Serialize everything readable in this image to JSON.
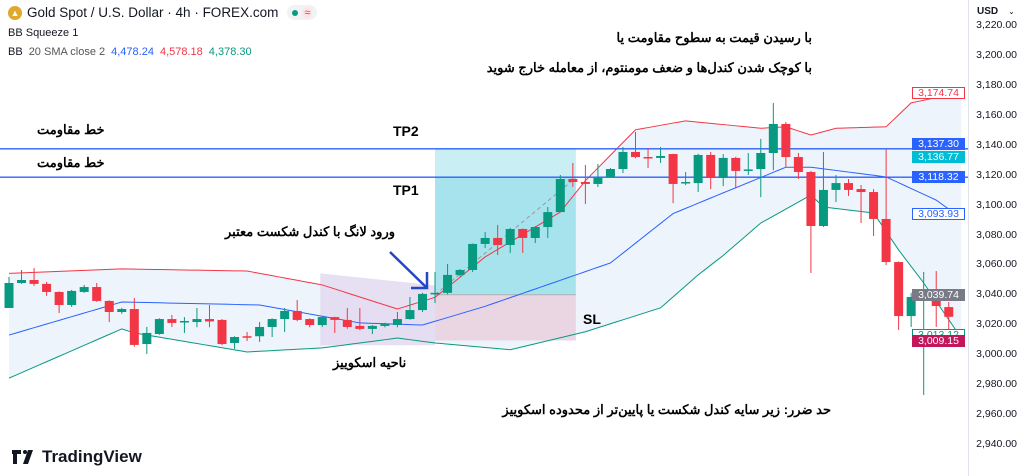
{
  "header": {
    "symbol_title": "Gold Spot / U.S. Dollar · 4h · FOREX.com",
    "wave_icon": "≈",
    "indicator1": "BB Squeeze 1",
    "bb_label": "BB",
    "bb_params": "20 SMA close 2",
    "bb_basis": "4,478.24",
    "bb_upper": "4,578.18",
    "bb_lower": "4,378.30"
  },
  "axis": {
    "currency": "USD",
    "ticks": [
      "3,220.00",
      "3,200.00",
      "3,180.00",
      "3,160.00",
      "3,140.00",
      "3,120.00",
      "3,100.00",
      "3,080.00",
      "3,060.00",
      "3,040.00",
      "3,020.00",
      "3,000.00",
      "2,980.00",
      "2,960.00",
      "2,940.00"
    ],
    "tick_values": [
      3220,
      3200,
      3180,
      3160,
      3140,
      3120,
      3100,
      3080,
      3060,
      3040,
      3020,
      3000,
      2980,
      2960,
      2940
    ],
    "labels": [
      {
        "text": "3,174.74",
        "value": 3174.74,
        "style": "outline",
        "color": "#f23645"
      },
      {
        "text": "3,137.30",
        "value": 3140.3,
        "style": "fill",
        "color": "#2962ff"
      },
      {
        "text": "3,136.77",
        "value": 3131.5,
        "style": "fill",
        "color": "#00bcd4"
      },
      {
        "text": "3,118.32",
        "value": 3118.32,
        "style": "fill",
        "color": "#2962ff"
      },
      {
        "text": "3,093.93",
        "value": 3093.93,
        "style": "outline",
        "color": "#2962ff"
      },
      {
        "text": "3,039.74",
        "value": 3039.74,
        "style": "fill",
        "color": "#787b86"
      },
      {
        "text": "3,013.12",
        "value": 3013.12,
        "style": "outline",
        "color": "#089981"
      },
      {
        "text": "3,009.15",
        "value": 3009.15,
        "style": "fill",
        "color": "#c2185b"
      }
    ]
  },
  "annotations": {
    "exit_line1": "با رسیدن قیمت به سطوح مقاومت یا",
    "exit_line2": "با کوچک شدن کندل‌ها و ضعف مومنتوم، از معامله خارج شوید",
    "resistance1": "خط مقاومت",
    "resistance2": "خط مقاومت",
    "tp2": "TP2",
    "tp1": "TP1",
    "entry": "ورود لانگ با کندل شکست معتبر",
    "squeeze_zone": "ناحیه اسکوییز",
    "sl": "SL",
    "stop_loss": "حد ضرر: زیر سایه کندل شکست یا پایین‌تر از محدوده اسکوییز"
  },
  "levels": {
    "resistance_high": 3137.3,
    "resistance_low": 3118.32
  },
  "position": {
    "entry": 3039.74,
    "take_profit": 3137.3,
    "stop_loss": 3009.15,
    "start_index": 34,
    "end_index": 45
  },
  "squeeze": {
    "start_index": 25,
    "end_index": 34
  },
  "colors": {
    "up": "#089981",
    "down": "#f23645",
    "basis": "#2962ff",
    "upper": "#f23645",
    "lower": "#089981",
    "band_fill": "#eef4fb",
    "level": "#2962ff",
    "tp": "#a6e3ec",
    "tp_light": "#c9eef4",
    "sl": "#ead6e3",
    "squeeze": "#e3d9f0"
  },
  "candles": [
    [
      3030.9,
      3051.6,
      3030.9,
      3047.6
    ],
    [
      3047.6,
      3056.3,
      3047,
      3049.6
    ],
    [
      3049.6,
      3057.6,
      3045.6,
      3047
    ],
    [
      3047,
      3048.3,
      3039,
      3041.6
    ],
    [
      3041.6,
      3042,
      3027.5,
      3032.9
    ],
    [
      3032.9,
      3043,
      3031.6,
      3042.3
    ],
    [
      3041.6,
      3046.3,
      3041,
      3044.9
    ],
    [
      3044.9,
      3047.6,
      3035,
      3035.6
    ],
    [
      3035.6,
      3036,
      3021.5,
      3028.2
    ],
    [
      3028.2,
      3031,
      3027,
      3030.2
    ],
    [
      3030.2,
      3037.6,
      3005,
      3006.2
    ],
    [
      3006.8,
      3018.2,
      3000.1,
      3014.2
    ],
    [
      3013.5,
      3024,
      3013,
      3023.5
    ],
    [
      3023.5,
      3026.2,
      3018.2,
      3020.9
    ],
    [
      3021.5,
      3024.8,
      3014.2,
      3022.2
    ],
    [
      3021.5,
      3030.9,
      3018,
      3023.5
    ],
    [
      3023.5,
      3032.9,
      3018,
      3021.9
    ],
    [
      3022.9,
      3023.5,
      3006,
      3006.8
    ],
    [
      3007.5,
      3012,
      3003.5,
      3011.5
    ],
    [
      3012,
      3014.8,
      3008.8,
      3011.5
    ],
    [
      3012,
      3021.5,
      3008.2,
      3018.2
    ],
    [
      3018.2,
      3024,
      3011.5,
      3023.5
    ],
    [
      3023.5,
      3030.9,
      3014.8,
      3028.9
    ],
    [
      3028.9,
      3036.2,
      3022,
      3022.9
    ],
    [
      3023.5,
      3024,
      3018,
      3019.5
    ],
    [
      3019.5,
      3025.5,
      3018.2,
      3024.8
    ],
    [
      3024.8,
      3025,
      3014.2,
      3022.9
    ],
    [
      3022.9,
      3030.9,
      3017,
      3018.2
    ],
    [
      3018.9,
      3030.9,
      3016,
      3016.9
    ],
    [
      3016.9,
      3019.5,
      3013.5,
      3018.9
    ],
    [
      3018.9,
      3021,
      3018,
      3020.2
    ],
    [
      3019.5,
      3028.2,
      3018,
      3023.5
    ],
    [
      3023.5,
      3038.2,
      3023,
      3029.5
    ],
    [
      3029.5,
      3041,
      3028.2,
      3040.3
    ],
    [
      3040.3,
      3055,
      3034.2,
      3041
    ],
    [
      3041,
      3060.3,
      3040,
      3053
    ],
    [
      3053,
      3057,
      3052,
      3056.3
    ],
    [
      3056.3,
      3074,
      3055,
      3073.7
    ],
    [
      3073.7,
      3081.7,
      3071,
      3077.7
    ],
    [
      3077.7,
      3086.4,
      3066.3,
      3073
    ],
    [
      3073,
      3084.4,
      3067.7,
      3083.7
    ],
    [
      3083.7,
      3084,
      3067.7,
      3077.7
    ],
    [
      3077.7,
      3085.6,
      3074.3,
      3085
    ],
    [
      3085,
      3098.4,
      3077.7,
      3095
    ],
    [
      3095,
      3119.8,
      3095,
      3117.1
    ],
    [
      3117.1,
      3127.8,
      3111.8,
      3115.1
    ],
    [
      3115.1,
      3126.5,
      3100.4,
      3113.8
    ],
    [
      3113.8,
      3127.1,
      3111.8,
      3118.5
    ],
    [
      3118.5,
      3124.5,
      3118,
      3123.8
    ],
    [
      3123.8,
      3138.5,
      3121.1,
      3135.2
    ],
    [
      3135.2,
      3148.5,
      3131,
      3131.8
    ],
    [
      3131.8,
      3137.8,
      3124.5,
      3131.5
    ],
    [
      3131.2,
      3138.5,
      3127.8,
      3132.5
    ],
    [
      3133.8,
      3134,
      3101,
      3113.8
    ],
    [
      3114.5,
      3121.8,
      3113,
      3115.1
    ],
    [
      3114.4,
      3134,
      3108.4,
      3133.2
    ],
    [
      3133.2,
      3135.2,
      3110.4,
      3117.8
    ],
    [
      3117.8,
      3133.8,
      3112.4,
      3131.2
    ],
    [
      3131.2,
      3132,
      3111,
      3122.5
    ],
    [
      3123,
      3134.5,
      3119.8,
      3123.5
    ],
    [
      3123.8,
      3143.9,
      3105,
      3134.5
    ],
    [
      3134.5,
      3167.9,
      3123,
      3153.9
    ],
    [
      3153.9,
      3155.2,
      3125.1,
      3131.8
    ],
    [
      3131.8,
      3134.5,
      3117.1,
      3121.8
    ],
    [
      3121.8,
      3122.5,
      3054.3,
      3085.7
    ],
    [
      3085.7,
      3135.2,
      3085,
      3109.8
    ],
    [
      3109.8,
      3119.8,
      3101.7,
      3114.4
    ],
    [
      3114.4,
      3117.1,
      3105.8,
      3109.8
    ],
    [
      3110.4,
      3113.1,
      3087.7,
      3108.4
    ],
    [
      3108.4,
      3110.4,
      3079,
      3090.4
    ],
    [
      3090.4,
      3137.2,
      3059.6,
      3061.6
    ],
    [
      3061.6,
      3062,
      3016.2,
      3025.5
    ],
    [
      3025.5,
      3041,
      3018.2,
      3038.2
    ],
    [
      3038.2,
      3055,
      2972.7,
      3038.9
    ],
    [
      3038.2,
      3055.6,
      3018.2,
      3032.2
    ],
    [
      3031.5,
      3034.9,
      3011.5,
      3025
    ]
  ],
  "bands": {
    "upper": [
      [
        0,
        3054
      ],
      [
        9,
        3057
      ],
      [
        19,
        3055.6
      ],
      [
        25,
        3046.3
      ],
      [
        31,
        3030.2
      ],
      [
        34,
        3038
      ],
      [
        38,
        3065
      ],
      [
        44,
        3095
      ],
      [
        46,
        3116
      ],
      [
        50,
        3150
      ],
      [
        54,
        3156
      ],
      [
        60,
        3151
      ],
      [
        62,
        3152
      ],
      [
        64,
        3146.5
      ],
      [
        66,
        3151
      ],
      [
        70,
        3152
      ],
      [
        72,
        3168
      ],
      [
        76,
        3175
      ]
    ],
    "basis": [
      [
        0,
        3012.8
      ],
      [
        9,
        3034.9
      ],
      [
        20,
        3032.9
      ],
      [
        28,
        3020.9
      ],
      [
        33,
        3019.5
      ],
      [
        34,
        3022
      ],
      [
        38,
        3032
      ],
      [
        48,
        3061
      ],
      [
        53,
        3094
      ],
      [
        56,
        3104.4
      ],
      [
        62,
        3125
      ],
      [
        64,
        3125
      ],
      [
        70,
        3118.5
      ],
      [
        74,
        3103
      ],
      [
        76,
        3091
      ]
    ],
    "lower": [
      [
        0,
        2984
      ],
      [
        9,
        3016.9
      ],
      [
        10,
        3014.2
      ],
      [
        19,
        3001.5
      ],
      [
        25,
        3004.2
      ],
      [
        31,
        3010.8
      ],
      [
        34,
        3007.5
      ],
      [
        40,
        3003
      ],
      [
        46,
        3015
      ],
      [
        52,
        3031
      ],
      [
        55,
        3053
      ],
      [
        57,
        3066
      ],
      [
        60,
        3087.7
      ],
      [
        64,
        3106.4
      ],
      [
        65,
        3098.4
      ],
      [
        69,
        3094.4
      ],
      [
        71,
        3069.7
      ],
      [
        73,
        3047.6
      ],
      [
        76,
        3010.8
      ]
    ]
  },
  "branding": {
    "logo_text": "TradingView"
  }
}
